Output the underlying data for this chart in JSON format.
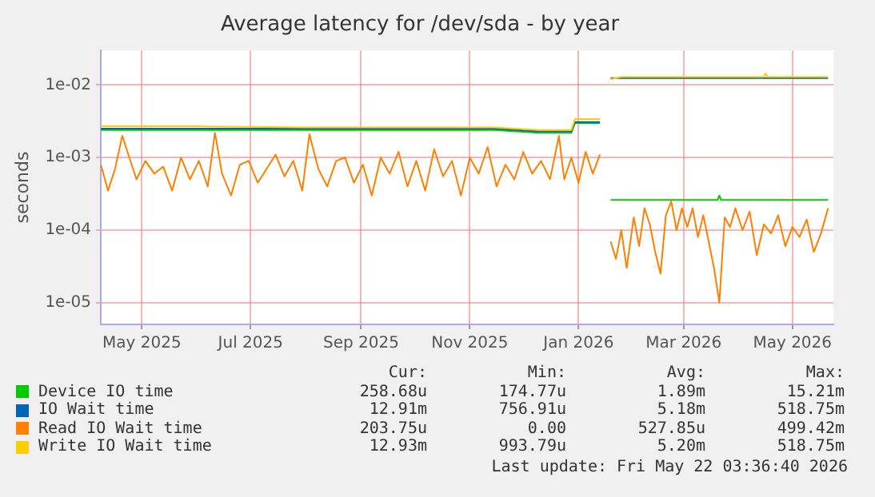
{
  "chart_data": {
    "type": "line",
    "title": "Average latency for /dev/sda - by year",
    "ylabel": "seconds",
    "log": "y",
    "grid": true,
    "legend": "bottom",
    "marker": "none",
    "line_style": "solid",
    "xlim": [
      "2025-04-08",
      "2026-05-24"
    ],
    "xticks": [
      {
        "value": "2025-05-01",
        "label": "May 2025"
      },
      {
        "value": "2025-07-01",
        "label": "Jul 2025"
      },
      {
        "value": "2025-09-01",
        "label": "Sep 2025"
      },
      {
        "value": "2025-11-01",
        "label": "Nov 2025"
      },
      {
        "value": "2026-01-01",
        "label": "Jan 2026"
      },
      {
        "value": "2026-03-01",
        "label": "Mar 2026"
      },
      {
        "value": "2026-05-01",
        "label": "May 2026"
      }
    ],
    "ylim": [
      5e-06,
      0.03
    ],
    "yticks": [
      {
        "value": 1e-05,
        "label": "1e-05"
      },
      {
        "value": 0.0001,
        "label": "1e-04"
      },
      {
        "value": 0.001,
        "label": "1e-03"
      },
      {
        "value": 0.01,
        "label": "1e-02"
      }
    ],
    "series": [
      {
        "name": "Device IO time",
        "color": "#00cc00",
        "x": [
          "2025-04-08",
          "2025-06-01",
          "2025-08-01",
          "2025-10-01",
          "2025-11-15",
          "2025-12-10",
          "2025-12-28",
          "2025-12-30",
          "2026-01-13",
          "2026-01-16",
          "2026-01-19",
          "2026-03-20",
          "2026-03-21",
          "2026-03-22",
          "2026-04-24",
          "2026-05-21"
        ],
        "values": [
          0.0024,
          0.0024,
          0.0024,
          0.0024,
          0.0024,
          0.0022,
          0.0022,
          0.003,
          0.003,
          null,
          0.00026,
          0.00026,
          0.0003,
          0.00026,
          0.00026,
          0.00026
        ]
      },
      {
        "name": "IO Wait time",
        "color": "#0066b3",
        "x": [
          "2025-04-08",
          "2025-08-01",
          "2025-11-15",
          "2025-12-10",
          "2025-12-28",
          "2025-12-30",
          "2026-01-13",
          "2026-01-16",
          "2026-01-19",
          "2026-02-20",
          "2026-05-21"
        ],
        "values": [
          0.0025,
          0.0025,
          0.0025,
          0.0023,
          0.0023,
          0.0031,
          0.0031,
          null,
          0.0125,
          0.0125,
          0.0125
        ]
      },
      {
        "name": "Read IO Wait time",
        "color": "#ff8000",
        "x": [
          "2025-04-08",
          "2025-04-12",
          "2025-04-16",
          "2025-04-20",
          "2025-04-24",
          "2025-04-28",
          "2025-05-03",
          "2025-05-08",
          "2025-05-13",
          "2025-05-18",
          "2025-05-23",
          "2025-05-28",
          "2025-06-02",
          "2025-06-07",
          "2025-06-11",
          "2025-06-15",
          "2025-06-20",
          "2025-06-25",
          "2025-06-30",
          "2025-07-05",
          "2025-07-10",
          "2025-07-15",
          "2025-07-20",
          "2025-07-25",
          "2025-07-30",
          "2025-08-03",
          "2025-08-08",
          "2025-08-13",
          "2025-08-18",
          "2025-08-23",
          "2025-08-28",
          "2025-09-02",
          "2025-09-07",
          "2025-09-12",
          "2025-09-17",
          "2025-09-22",
          "2025-09-27",
          "2025-10-02",
          "2025-10-07",
          "2025-10-12",
          "2025-10-17",
          "2025-10-22",
          "2025-10-27",
          "2025-11-01",
          "2025-11-06",
          "2025-11-11",
          "2025-11-16",
          "2025-11-21",
          "2025-11-26",
          "2025-12-01",
          "2025-12-06",
          "2025-12-11",
          "2025-12-16",
          "2025-12-21",
          "2025-12-24",
          "2025-12-28",
          "2026-01-01",
          "2026-01-05",
          "2026-01-09",
          "2026-01-13",
          "2026-01-16",
          "2026-01-19",
          "2026-01-22",
          "2026-01-25",
          "2026-01-28",
          "2026-02-01",
          "2026-02-04",
          "2026-02-07",
          "2026-02-10",
          "2026-02-13",
          "2026-02-16",
          "2026-02-19",
          "2026-02-22",
          "2026-02-25",
          "2026-02-28",
          "2026-03-03",
          "2026-03-06",
          "2026-03-09",
          "2026-03-12",
          "2026-03-15",
          "2026-03-18",
          "2026-03-21",
          "2026-03-24",
          "2026-03-27",
          "2026-03-30",
          "2026-04-03",
          "2026-04-07",
          "2026-04-11",
          "2026-04-15",
          "2026-04-19",
          "2026-04-23",
          "2026-04-27",
          "2026-05-01",
          "2026-05-05",
          "2026-05-09",
          "2026-05-13",
          "2026-05-17",
          "2026-05-21"
        ],
        "values": [
          0.0008,
          0.00035,
          0.0007,
          0.002,
          0.001,
          0.0005,
          0.0009,
          0.0006,
          0.00075,
          0.00035,
          0.001,
          0.0005,
          0.0009,
          0.0004,
          0.0022,
          0.0006,
          0.0003,
          0.0008,
          0.0009,
          0.00045,
          0.0007,
          0.0011,
          0.00055,
          0.0009,
          0.00035,
          0.0021,
          0.0007,
          0.0004,
          0.0009,
          0.001,
          0.00045,
          0.0008,
          0.0003,
          0.001,
          0.0006,
          0.0012,
          0.0004,
          0.0009,
          0.00035,
          0.0013,
          0.00055,
          0.0009,
          0.0003,
          0.001,
          0.0006,
          0.0014,
          0.0004,
          0.0008,
          0.0005,
          0.0012,
          0.0006,
          0.0009,
          0.0005,
          0.002,
          0.0005,
          0.001,
          0.00045,
          0.0012,
          0.0006,
          0.0011,
          null,
          7e-05,
          4e-05,
          0.0001,
          3e-05,
          0.00015,
          6e-05,
          0.0002,
          0.00012,
          5e-05,
          2.5e-05,
          0.00016,
          0.00025,
          0.0001,
          0.0002,
          0.00011,
          0.0002,
          8e-05,
          0.00016,
          7e-05,
          3e-05,
          1e-05,
          0.00015,
          0.00011,
          0.0002,
          0.0001,
          0.00018,
          4.5e-05,
          0.00012,
          9e-05,
          0.00016,
          6e-05,
          0.00011,
          8e-05,
          0.00014,
          5e-05,
          9e-05,
          0.0002
        ]
      },
      {
        "name": "Write IO Wait time",
        "color": "#ffcc00",
        "x": [
          "2025-04-08",
          "2025-06-01",
          "2025-08-01",
          "2025-10-01",
          "2025-11-15",
          "2025-12-10",
          "2025-12-28",
          "2025-12-30",
          "2026-01-13",
          "2026-01-16",
          "2026-01-19",
          "2026-01-25",
          "2026-04-15",
          "2026-04-16",
          "2026-04-17",
          "2026-05-21"
        ],
        "values": [
          0.0027,
          0.0027,
          0.0026,
          0.0026,
          0.0026,
          0.0024,
          0.0024,
          0.0034,
          0.0034,
          null,
          0.012,
          0.013,
          0.013,
          0.0145,
          0.013,
          0.013
        ]
      }
    ],
    "annotations": [
      "Cur:",
      "Min:",
      "Avg:",
      "Max:",
      "258.68u",
      "174.77u",
      "1.89m",
      "15.21m",
      "12.91m",
      "756.91u",
      "5.18m",
      "518.75m",
      "203.75u",
      "0.00",
      "527.85u",
      "499.42m",
      "12.93m",
      "993.79u",
      "5.20m",
      "518.75m",
      "Last update: Fri May 22 03:36:40 2026"
    ]
  }
}
